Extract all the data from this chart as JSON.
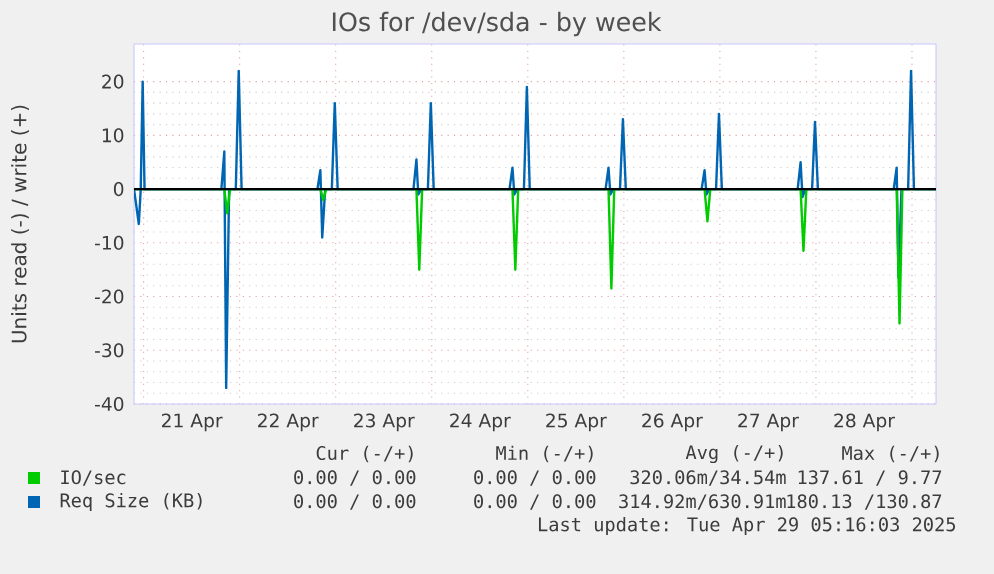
{
  "chart_data": {
    "type": "line",
    "title": "IOs for /dev/sda - by week",
    "ylabel": "Units read (-) / write (+)",
    "xlim": [
      "2025-04-20T21:36",
      "2025-04-29T06:00"
    ],
    "ylim": [
      -40,
      27
    ],
    "xticks": [
      {
        "value": "2025-04-21T12:00",
        "label": "21 Apr"
      },
      {
        "value": "2025-04-22T12:00",
        "label": "22 Apr"
      },
      {
        "value": "2025-04-23T12:00",
        "label": "23 Apr"
      },
      {
        "value": "2025-04-24T12:00",
        "label": "24 Apr"
      },
      {
        "value": "2025-04-25T12:00",
        "label": "25 Apr"
      },
      {
        "value": "2025-04-26T12:00",
        "label": "26 Apr"
      },
      {
        "value": "2025-04-27T12:00",
        "label": "27 Apr"
      },
      {
        "value": "2025-04-28T12:00",
        "label": "28 Apr"
      }
    ],
    "yticks": [
      -40,
      -30,
      -20,
      -10,
      0,
      10,
      20
    ],
    "grid": true,
    "legend": "bottom",
    "marker": "none",
    "line_style": "solid",
    "ref_lines": [
      {
        "axis": "y",
        "value": 0,
        "color": "#000000"
      }
    ],
    "series": [
      {
        "name": "Req Size (KB)",
        "color": "#0066b3",
        "x": [
          "2025-04-20T21:36",
          "2025-04-20T22:48",
          "2025-04-20T23:17",
          "2025-04-21T19:26",
          "2025-04-21T20:10",
          "2025-04-21T20:38",
          "2025-04-21T21:22",
          "2025-04-22T19:26",
          "2025-04-22T20:10",
          "2025-04-22T20:38",
          "2025-04-22T21:22",
          "2025-04-23T19:26",
          "2025-04-23T20:10",
          "2025-04-23T20:38",
          "2025-04-23T21:22",
          "2025-04-24T19:26",
          "2025-04-24T20:10",
          "2025-04-24T20:38",
          "2025-04-24T21:22",
          "2025-04-25T19:26",
          "2025-04-25T20:10",
          "2025-04-25T20:38",
          "2025-04-25T21:22",
          "2025-04-26T19:26",
          "2025-04-26T20:10",
          "2025-04-26T20:38",
          "2025-04-26T21:22",
          "2025-04-27T19:26",
          "2025-04-27T20:10",
          "2025-04-27T20:38",
          "2025-04-27T21:22",
          "2025-04-28T19:26",
          "2025-04-28T20:10",
          "2025-04-28T20:38",
          "2025-04-28T21:22",
          "2025-04-29T06:00"
        ],
        "values": [
          0,
          -6.5,
          0,
          0,
          7,
          -37,
          0,
          0,
          3.5,
          -9,
          0,
          0,
          5.5,
          -1,
          0,
          0,
          4,
          -1,
          0,
          0,
          4,
          -1,
          0,
          0,
          3.5,
          -1,
          0,
          0,
          5,
          -1.5,
          0,
          0,
          4,
          -16.5,
          0,
          0
        ]
      },
      {
        "color": "#0066b3",
        "x": [
          "2025-04-20T21:36",
          "2025-04-20T23:17",
          "2025-04-20T23:46",
          "2025-04-21T00:14",
          "2025-04-21T23:02",
          "2025-04-21T23:46",
          "2025-04-22T00:29",
          "2025-04-22T23:02",
          "2025-04-22T23:46",
          "2025-04-23T00:29",
          "2025-04-23T23:02",
          "2025-04-23T23:46",
          "2025-04-24T00:29",
          "2025-04-24T23:02",
          "2025-04-24T23:46",
          "2025-04-25T00:29",
          "2025-04-25T23:02",
          "2025-04-25T23:46",
          "2025-04-26T00:29",
          "2025-04-26T23:02",
          "2025-04-26T23:46",
          "2025-04-27T00:29",
          "2025-04-27T23:02",
          "2025-04-27T23:46",
          "2025-04-28T00:29",
          "2025-04-28T23:02",
          "2025-04-28T23:46",
          "2025-04-29T00:29",
          "2025-04-29T06:00"
        ],
        "values": [
          0,
          0,
          20,
          0,
          0,
          22,
          0,
          0,
          16,
          0,
          0,
          16,
          0,
          0,
          19,
          0,
          0,
          13,
          0,
          0,
          14,
          0,
          0,
          12.5,
          0,
          0,
          22,
          0,
          0
        ]
      },
      {
        "name": "IO/sec",
        "color": "#00cc00",
        "x": [
          "2025-04-20T21:36",
          "2025-04-21T20:10",
          "2025-04-21T20:53",
          "2025-04-21T21:36",
          "2025-04-22T20:10",
          "2025-04-22T20:53",
          "2025-04-22T21:36",
          "2025-04-23T20:10",
          "2025-04-23T20:53",
          "2025-04-23T21:36",
          "2025-04-24T20:10",
          "2025-04-24T20:53",
          "2025-04-24T21:36",
          "2025-04-25T20:10",
          "2025-04-25T20:53",
          "2025-04-25T21:36",
          "2025-04-26T20:10",
          "2025-04-26T20:53",
          "2025-04-26T21:36",
          "2025-04-27T20:10",
          "2025-04-27T20:53",
          "2025-04-27T21:36",
          "2025-04-28T20:10",
          "2025-04-28T20:53",
          "2025-04-28T21:36",
          "2025-04-29T06:00"
        ],
        "values": [
          0,
          0,
          -4.5,
          0,
          0,
          -2,
          0,
          0,
          -15,
          0,
          0,
          -15,
          0,
          0,
          -18.5,
          0,
          0,
          -6,
          0,
          0,
          -11.5,
          0,
          0,
          -25,
          0,
          0
        ]
      }
    ],
    "annotations": [
      "Cur (-/+)",
      "Min (-/+)",
      "Avg (-/+)",
      "Max (-/+)",
      "0.00 / 0.00",
      "0.00 / 0.00",
      "320.06m/34.54m",
      "137.61 / 9.77",
      "0.00 / 0.00",
      "0.00 / 0.00",
      "314.92m/630.91m",
      "180.13 /130.87",
      "Last update: Tue Apr 29 05:16:03 2025"
    ]
  }
}
